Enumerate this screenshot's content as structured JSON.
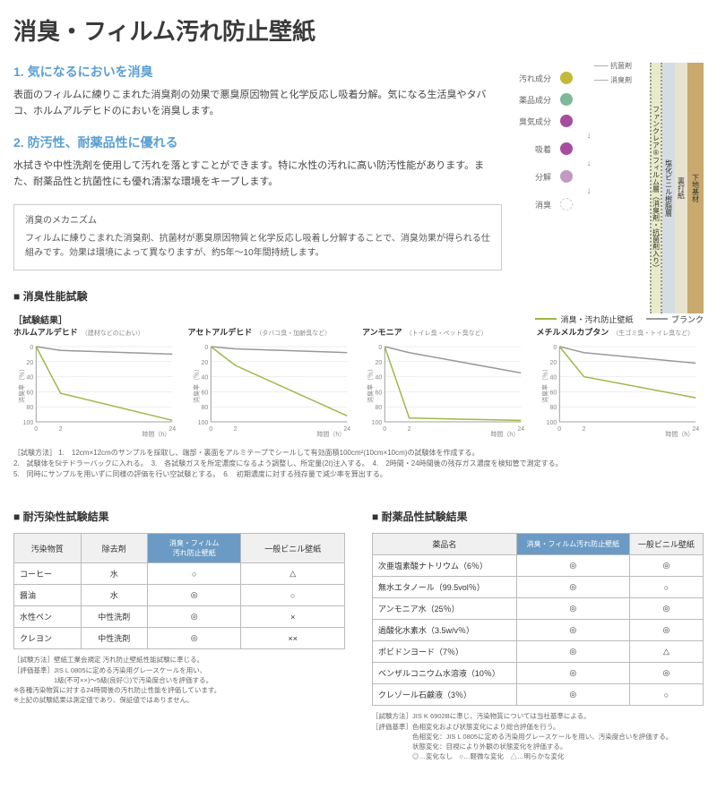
{
  "title": "消臭・フィルム汚れ防止壁紙",
  "section1": {
    "head": "1. 気になるにおいを消臭",
    "body": "表面のフィルムに練りこまれた消臭剤の効果で悪臭原因物質と化学反応し吸着分解。気になる生活臭やタバコ、ホルムアルデヒドのにおいを消臭します。"
  },
  "section2": {
    "head": "2. 防汚性、耐薬品性に優れる",
    "body": "水拭きや中性洗剤を使用して汚れを落とすことができます。特に水性の汚れに高い防汚性能があります。また、耐薬品性と抗菌性にも優れ清潔な環境をキープします。"
  },
  "mechanism": {
    "title": "消臭のメカニズム",
    "body": "フィルムに練りこまれた消臭剤、抗菌材が悪臭原因物質と化学反応し吸着し分解することで、消臭効果が得られる仕組みです。効果は環境によって異なりますが、約5年〜10年間持続します。"
  },
  "diagram": {
    "agents": {
      "antibac": "抗菌剤",
      "deodor": "消臭剤"
    },
    "layers": {
      "film": "ファンクレア®フィルム層（消臭剤・抗菌剤入り）",
      "pvc": "塩化ビニル樹脂層",
      "back": "裏打紙",
      "base": "下地基材"
    },
    "process": [
      {
        "label": "汚れ成分",
        "color": "#c4b838"
      },
      {
        "label": "薬品成分",
        "color": "#7fb89a"
      },
      {
        "label": "臭気成分",
        "color": "#a64d9e"
      },
      {
        "label": "吸着",
        "color": "#a64d9e"
      },
      {
        "label": "分解",
        "color": "#c49ac4"
      },
      {
        "label": "消臭",
        "color": "#ffffff"
      }
    ]
  },
  "deodorTest": {
    "title": "■ 消臭性能試験",
    "resultLabel": "［試験結果］",
    "legend": {
      "product": {
        "label": "消臭・汚れ防止壁紙",
        "color": "#9db84a"
      },
      "blank": {
        "label": "ブランク",
        "color": "#999999"
      }
    },
    "ylabel": "消臭率（％）",
    "xlabel": "時間（h）",
    "xticks": [
      "0",
      "2",
      "24"
    ],
    "yticks": [
      "0",
      "20",
      "40",
      "60",
      "80",
      "100"
    ],
    "charts": [
      {
        "name": "ホルムアルデヒド",
        "sub": "（建材などのにおい）",
        "product": [
          0,
          62,
          98
        ],
        "blank": [
          0,
          5,
          10
        ]
      },
      {
        "name": "アセトアルデヒド",
        "sub": "（タバコ臭・加齢臭など）",
        "product": [
          0,
          25,
          92
        ],
        "blank": [
          0,
          3,
          8
        ]
      },
      {
        "name": "アンモニア",
        "sub": "（トイレ臭・ペット臭など）",
        "product": [
          0,
          95,
          98
        ],
        "blank": [
          0,
          8,
          35
        ]
      },
      {
        "name": "メチルメルカプタン",
        "sub": "（生ゴミ臭・トイレ臭など）",
        "product": [
          0,
          40,
          68
        ],
        "blank": [
          0,
          8,
          22
        ]
      }
    ],
    "methodLabel": "［試験方法］",
    "methods": [
      "1.　12cm×12cmのサンプルを採取し、端部・裏面をアルミテープでシールして有効面積100cm²(10cm×10cm)の試験体を作成する。",
      "2.　試験体を5ℓテドラーバックに入れる。　3.　各試験ガスを所定濃度になるよう調整し、所定量(2ℓ)注入する。　4.　2時間・24時間後の残存ガス濃度を検知管で測定する。",
      "5.　同時にサンプルを用いずに同様の評価を行い空試験とする。　6.　初期濃度に対する残存量で減少率を算出する。"
    ]
  },
  "stainTest": {
    "title": "■ 耐汚染性試験結果",
    "headers": [
      "汚染物質",
      "除去剤",
      "消臭・フィルム\n汚れ防止壁紙",
      "一般ビニル壁紙"
    ],
    "rows": [
      [
        "コーヒー",
        "水",
        "○",
        "△"
      ],
      [
        "醤油",
        "水",
        "◎",
        "○"
      ],
      [
        "水性ペン",
        "中性洗剤",
        "◎",
        "×"
      ],
      [
        "クレヨン",
        "中性洗剤",
        "◎",
        "××"
      ]
    ],
    "notes": [
      "［試験方法］壁紙工業会規定 汚れ防止壁紙性能試験に準じる。",
      "［評価基準］JIS L 0805に定める汚染用グレースケールを用い、",
      "　　　　　　1級(不可××)〜5級(良好◎)で汚染度合いを評価する。",
      "※各種汚染物質に対する24時間後の汚れ防止性能を評価しています。",
      "※上記の試験結果は測定値であり、保証値ではありません。"
    ]
  },
  "chemTest": {
    "title": "■ 耐薬品性試験結果",
    "headers": [
      "薬品名",
      "消臭・フィルム汚れ防止壁紙",
      "一般ビニル壁紙"
    ],
    "rows": [
      [
        "次亜塩素酸ナトリウム（6％）",
        "◎",
        "◎"
      ],
      [
        "無水エタノール（99.5vol％）",
        "◎",
        "○"
      ],
      [
        "アンモニア水（25％）",
        "◎",
        "◎"
      ],
      [
        "過酸化水素水（3.5w/v％）",
        "◎",
        "◎"
      ],
      [
        "ポビドンヨード（7％）",
        "◎",
        "△"
      ],
      [
        "ベンザルコニウム水溶液（10％）",
        "◎",
        "◎"
      ],
      [
        "クレゾール石鹸液（3％）",
        "◎",
        "○"
      ]
    ],
    "notes": [
      "［試験方法］JIS K 6902Bに準じ、汚染物質については当社基準による。",
      "［評価基準］色相変化および状態変化により総合評価を行う。",
      "　　　　　　色相変化：JIS L 0805に定める汚染用グレースケールを用い、汚染度合いを評価する。",
      "　　　　　　状態変化：目視により外観の状態変化を評価する。",
      "　　　　　　◎…変化なし　○…軽微な変化　△…明らかな変化"
    ]
  }
}
